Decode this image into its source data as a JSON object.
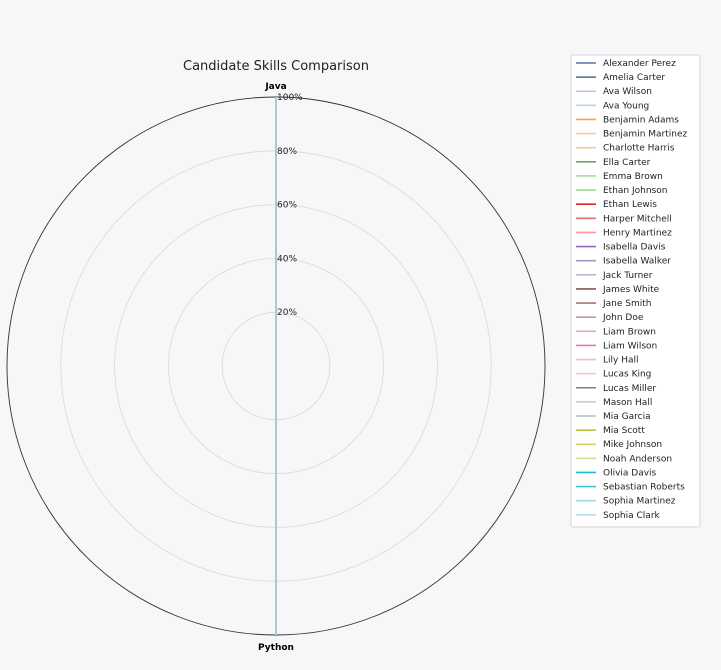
{
  "chart_data": {
    "type": "radar",
    "title": "Candidate Skills Comparison",
    "axes": [
      "Java",
      "Python"
    ],
    "rlim": [
      0,
      100
    ],
    "r_ticks": [
      20,
      40,
      60,
      80,
      100
    ],
    "r_tick_labels": [
      "20%",
      "40%",
      "60%",
      "80%",
      "100%"
    ],
    "grid": true,
    "legend_position": "top-right",
    "series": [
      {
        "name": "Alexander Perez",
        "values": [
          100,
          100
        ],
        "color": "#4e79a7"
      },
      {
        "name": "Amelia Carter",
        "values": [
          100,
          100
        ],
        "color": "#3b6e9e"
      },
      {
        "name": "Ava Wilson",
        "values": [
          100,
          100
        ],
        "color": "#aec7e8"
      },
      {
        "name": "Ava Young",
        "values": [
          100,
          100
        ],
        "color": "#b9d3ea"
      },
      {
        "name": "Benjamin Adams",
        "values": [
          100,
          100
        ],
        "color": "#ff9f4a"
      },
      {
        "name": "Benjamin Martinez",
        "values": [
          100,
          100
        ],
        "color": "#ffc894"
      },
      {
        "name": "Charlotte Harris",
        "values": [
          100,
          100
        ],
        "color": "#f7c98a"
      },
      {
        "name": "Ella Carter",
        "values": [
          100,
          100
        ],
        "color": "#5aae61"
      },
      {
        "name": "Emma Brown",
        "values": [
          100,
          100
        ],
        "color": "#a6dba0"
      },
      {
        "name": "Ethan Johnson",
        "values": [
          100,
          100
        ],
        "color": "#98df8a"
      },
      {
        "name": "Ethan Lewis",
        "values": [
          100,
          100
        ],
        "color": "#d62728"
      },
      {
        "name": "Harper Mitchell",
        "values": [
          100,
          100
        ],
        "color": "#e0706f"
      },
      {
        "name": "Henry Martinez",
        "values": [
          100,
          100
        ],
        "color": "#ff9896"
      },
      {
        "name": "Isabella Davis",
        "values": [
          100,
          100
        ],
        "color": "#9467bd"
      },
      {
        "name": "Isabella Walker",
        "values": [
          100,
          100
        ],
        "color": "#a890c8"
      },
      {
        "name": "Jack Turner",
        "values": [
          100,
          100
        ],
        "color": "#c5b0d5"
      },
      {
        "name": "James White",
        "values": [
          100,
          100
        ],
        "color": "#8c564b"
      },
      {
        "name": "Jane Smith",
        "values": [
          100,
          100
        ],
        "color": "#a87a6e"
      },
      {
        "name": "John Doe",
        "values": [
          100,
          100
        ],
        "color": "#c49c94"
      },
      {
        "name": "Liam Brown",
        "values": [
          100,
          100
        ],
        "color": "#d4b2a9"
      },
      {
        "name": "Liam Wilson",
        "values": [
          100,
          100
        ],
        "color": "#e377c2"
      },
      {
        "name": "Lily Hall",
        "values": [
          100,
          100
        ],
        "color": "#f7b6d2"
      },
      {
        "name": "Lucas King",
        "values": [
          100,
          100
        ],
        "color": "#f4c6dc"
      },
      {
        "name": "Lucas Miller",
        "values": [
          100,
          100
        ],
        "color": "#7f7f7f"
      },
      {
        "name": "Mason Hall",
        "values": [
          100,
          100
        ],
        "color": "#c7c7c7"
      },
      {
        "name": "Mia Garcia",
        "values": [
          100,
          100
        ],
        "color": "#b8bfc6"
      },
      {
        "name": "Mia Scott",
        "values": [
          100,
          100
        ],
        "color": "#bcbd22"
      },
      {
        "name": "Mike Johnson",
        "values": [
          100,
          100
        ],
        "color": "#cfd066"
      },
      {
        "name": "Noah Anderson",
        "values": [
          100,
          100
        ],
        "color": "#dbdb8d"
      },
      {
        "name": "Olivia Davis",
        "values": [
          100,
          100
        ],
        "color": "#17becf"
      },
      {
        "name": "Sebastian Roberts",
        "values": [
          100,
          100
        ],
        "color": "#3fc7d6"
      },
      {
        "name": "Sophia  Martinez",
        "values": [
          100,
          100
        ],
        "color": "#9edae5"
      },
      {
        "name": "Sophia Clark",
        "values": [
          100,
          100
        ],
        "color": "#b3e3ea"
      }
    ]
  }
}
